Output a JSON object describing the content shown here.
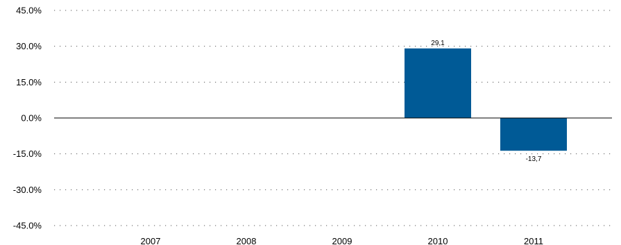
{
  "chart_data": {
    "type": "bar",
    "categories": [
      "2007",
      "2008",
      "2009",
      "2010",
      "2011"
    ],
    "values": [
      null,
      null,
      null,
      29.1,
      -13.7
    ],
    "data_labels": [
      "",
      "",
      "",
      "29,1",
      "-13,7"
    ],
    "y_ticks": [
      45,
      30,
      15,
      0,
      -15,
      -30,
      -45
    ],
    "y_tick_labels": [
      "45.0%",
      "30.0%",
      "15.0%",
      "0.0%",
      "-15.0%",
      "-30.0%",
      "-45.0%"
    ],
    "ylim": [
      -45,
      45
    ],
    "title": "",
    "xlabel": "",
    "ylabel": "",
    "grid": "dotted horizontal",
    "legend": "none",
    "bar_color": "#005a96",
    "zero_line_color": "#000000",
    "grid_color": "#555555"
  }
}
